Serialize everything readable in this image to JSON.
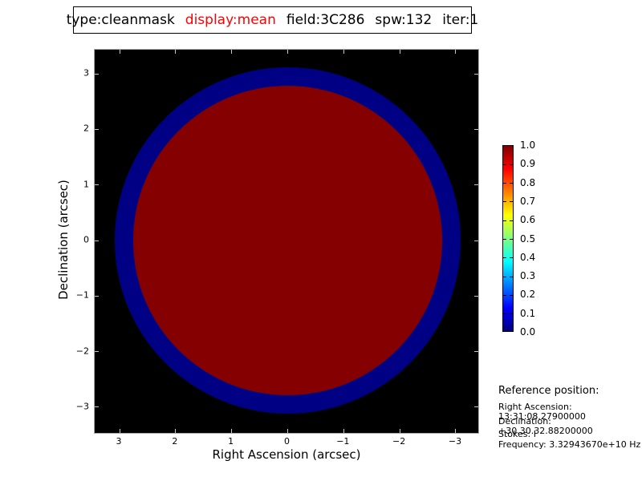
{
  "title_box": {
    "type_label": "type:cleanmask",
    "display_label": "display:mean",
    "field_label": "field:3C286",
    "spw_label": "spw:132",
    "iter_label": "iter:1",
    "display_color": "#ff0000"
  },
  "chart_data": {
    "type": "heatmap",
    "title": "type:cleanmask display:mean field:3C286 spw:132 iter:1",
    "xlabel": "Right Ascension (arcsec)",
    "ylabel": "Declination (arcsec)",
    "x_ticks": [
      3,
      2,
      1,
      0,
      -1,
      -2,
      -3
    ],
    "x_tick_labels": [
      "3",
      "2",
      "1",
      "0",
      "−1",
      "−2",
      "−3"
    ],
    "y_ticks": [
      3,
      2,
      1,
      0,
      -1,
      -2,
      -3
    ],
    "y_tick_labels": [
      "3",
      "2",
      "1",
      "0",
      "−1",
      "−2",
      "−3"
    ],
    "xlim": [
      3.45,
      -3.45
    ],
    "ylim": [
      -3.47,
      3.44
    ],
    "grid": false,
    "background_color": "#000000",
    "colormap": "jet",
    "regions": [
      {
        "name": "mask-outer-ring",
        "value": 0.0,
        "radius_arcsec": 3.09,
        "color": "#000084"
      },
      {
        "name": "mask-disk",
        "value": 1.0,
        "radius_arcsec": 2.76,
        "color": "#850000"
      }
    ],
    "colorbar": {
      "min": 0.0,
      "max": 1.0,
      "tick_labels": [
        "1.0",
        "0.9",
        "0.8",
        "0.7",
        "0.6",
        "0.5",
        "0.4",
        "0.3",
        "0.2",
        "0.1",
        "0.0"
      ],
      "gradient": [
        {
          "pos": 0.0,
          "color": "#000080"
        },
        {
          "pos": 0.125,
          "color": "#0000ff"
        },
        {
          "pos": 0.375,
          "color": "#00ffff"
        },
        {
          "pos": 0.625,
          "color": "#ffff00"
        },
        {
          "pos": 0.875,
          "color": "#ff0000"
        },
        {
          "pos": 1.0,
          "color": "#800000"
        }
      ]
    }
  },
  "reference": {
    "heading": "Reference position:",
    "lines": [
      "Right Ascension: 13:31:08.27900000",
      "Declination: +30.30.32.88200000",
      "Stokes: I",
      "Frequency: 3.32943670e+10 Hz"
    ]
  }
}
